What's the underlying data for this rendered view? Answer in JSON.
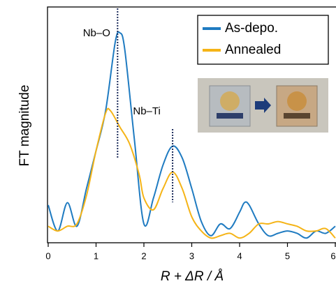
{
  "chart_data": {
    "type": "line",
    "xlabel": "R + ΔR / Å",
    "ylabel": "FT magnitude",
    "xlim": [
      0,
      6
    ],
    "xticks": [
      0,
      1,
      2,
      3,
      4,
      5,
      6
    ],
    "ylim": [
      0,
      100
    ],
    "legend": "upper right",
    "annotations": [
      {
        "text": "Nb–O",
        "x": 1.45
      },
      {
        "text": "Nb–Ti",
        "x": 2.6
      }
    ],
    "series": [
      {
        "name": "As-depo.",
        "color": "#1f7bc1",
        "x": [
          0,
          0.2,
          0.4,
          0.6,
          0.8,
          1.0,
          1.2,
          1.4,
          1.5,
          1.6,
          1.8,
          2.0,
          2.2,
          2.4,
          2.6,
          2.8,
          3.0,
          3.2,
          3.4,
          3.6,
          3.8,
          4.0,
          4.1,
          4.2,
          4.4,
          4.6,
          4.8,
          5.0,
          5.2,
          5.4,
          5.6,
          5.8,
          6.0
        ],
        "values": [
          16,
          5,
          17,
          7,
          23,
          39,
          56,
          85,
          89,
          82,
          44,
          8,
          19,
          33,
          41,
          36,
          23,
          9,
          3,
          8,
          6,
          13,
          17,
          16,
          8,
          3,
          4,
          5,
          4,
          2,
          5,
          4,
          7
        ]
      },
      {
        "name": "Annealed",
        "color": "#f5b417",
        "x": [
          0,
          0.2,
          0.4,
          0.6,
          0.8,
          1.0,
          1.2,
          1.3,
          1.5,
          1.7,
          1.9,
          2.0,
          2.2,
          2.4,
          2.6,
          2.8,
          3.0,
          3.2,
          3.4,
          3.6,
          3.8,
          4.0,
          4.2,
          4.4,
          4.6,
          4.8,
          5.0,
          5.2,
          5.4,
          5.6,
          5.8,
          6.0
        ],
        "values": [
          7,
          5,
          7,
          8,
          20,
          39,
          55,
          56,
          49,
          42,
          29,
          19,
          14,
          23,
          30,
          23,
          11,
          5,
          2,
          3,
          4,
          2,
          4,
          8,
          8,
          9,
          8,
          7,
          5,
          5,
          6,
          2
        ]
      }
    ]
  }
}
